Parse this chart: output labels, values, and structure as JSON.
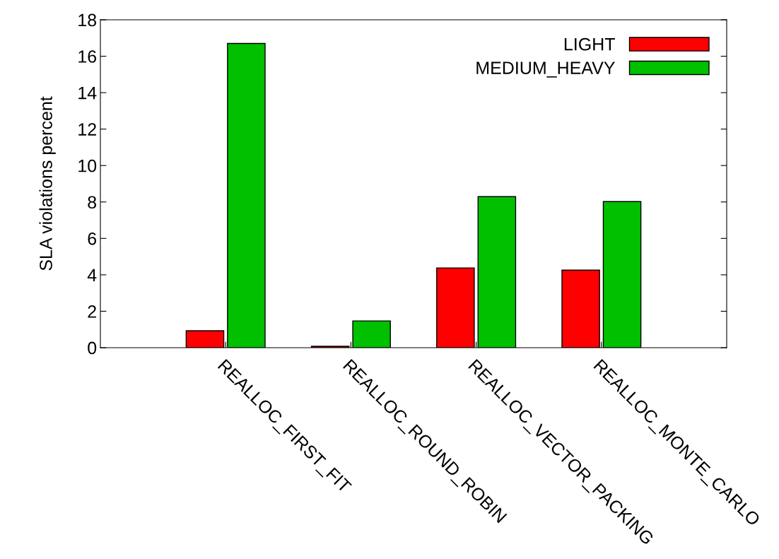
{
  "chart_data": {
    "type": "bar",
    "ylabel": "SLA violations percent",
    "categories": [
      "REALLOC_FIRST_FIT",
      "REALLOC_ROUND_ROBIN",
      "REALLOC_VECTOR_PACKING",
      "REALLOC_MONTE_CARLO"
    ],
    "series": [
      {
        "name": "LIGHT",
        "color": "#ff0000",
        "values": [
          0.93,
          0.08,
          4.38,
          4.26
        ]
      },
      {
        "name": "MEDIUM_HEAVY",
        "color": "#00c000",
        "values": [
          16.7,
          1.47,
          8.29,
          8.02
        ]
      }
    ],
    "ylim": [
      0,
      18
    ],
    "yticks": [
      0,
      2,
      4,
      6,
      8,
      10,
      12,
      14,
      16,
      18
    ],
    "legend": "top right",
    "grid": false
  }
}
